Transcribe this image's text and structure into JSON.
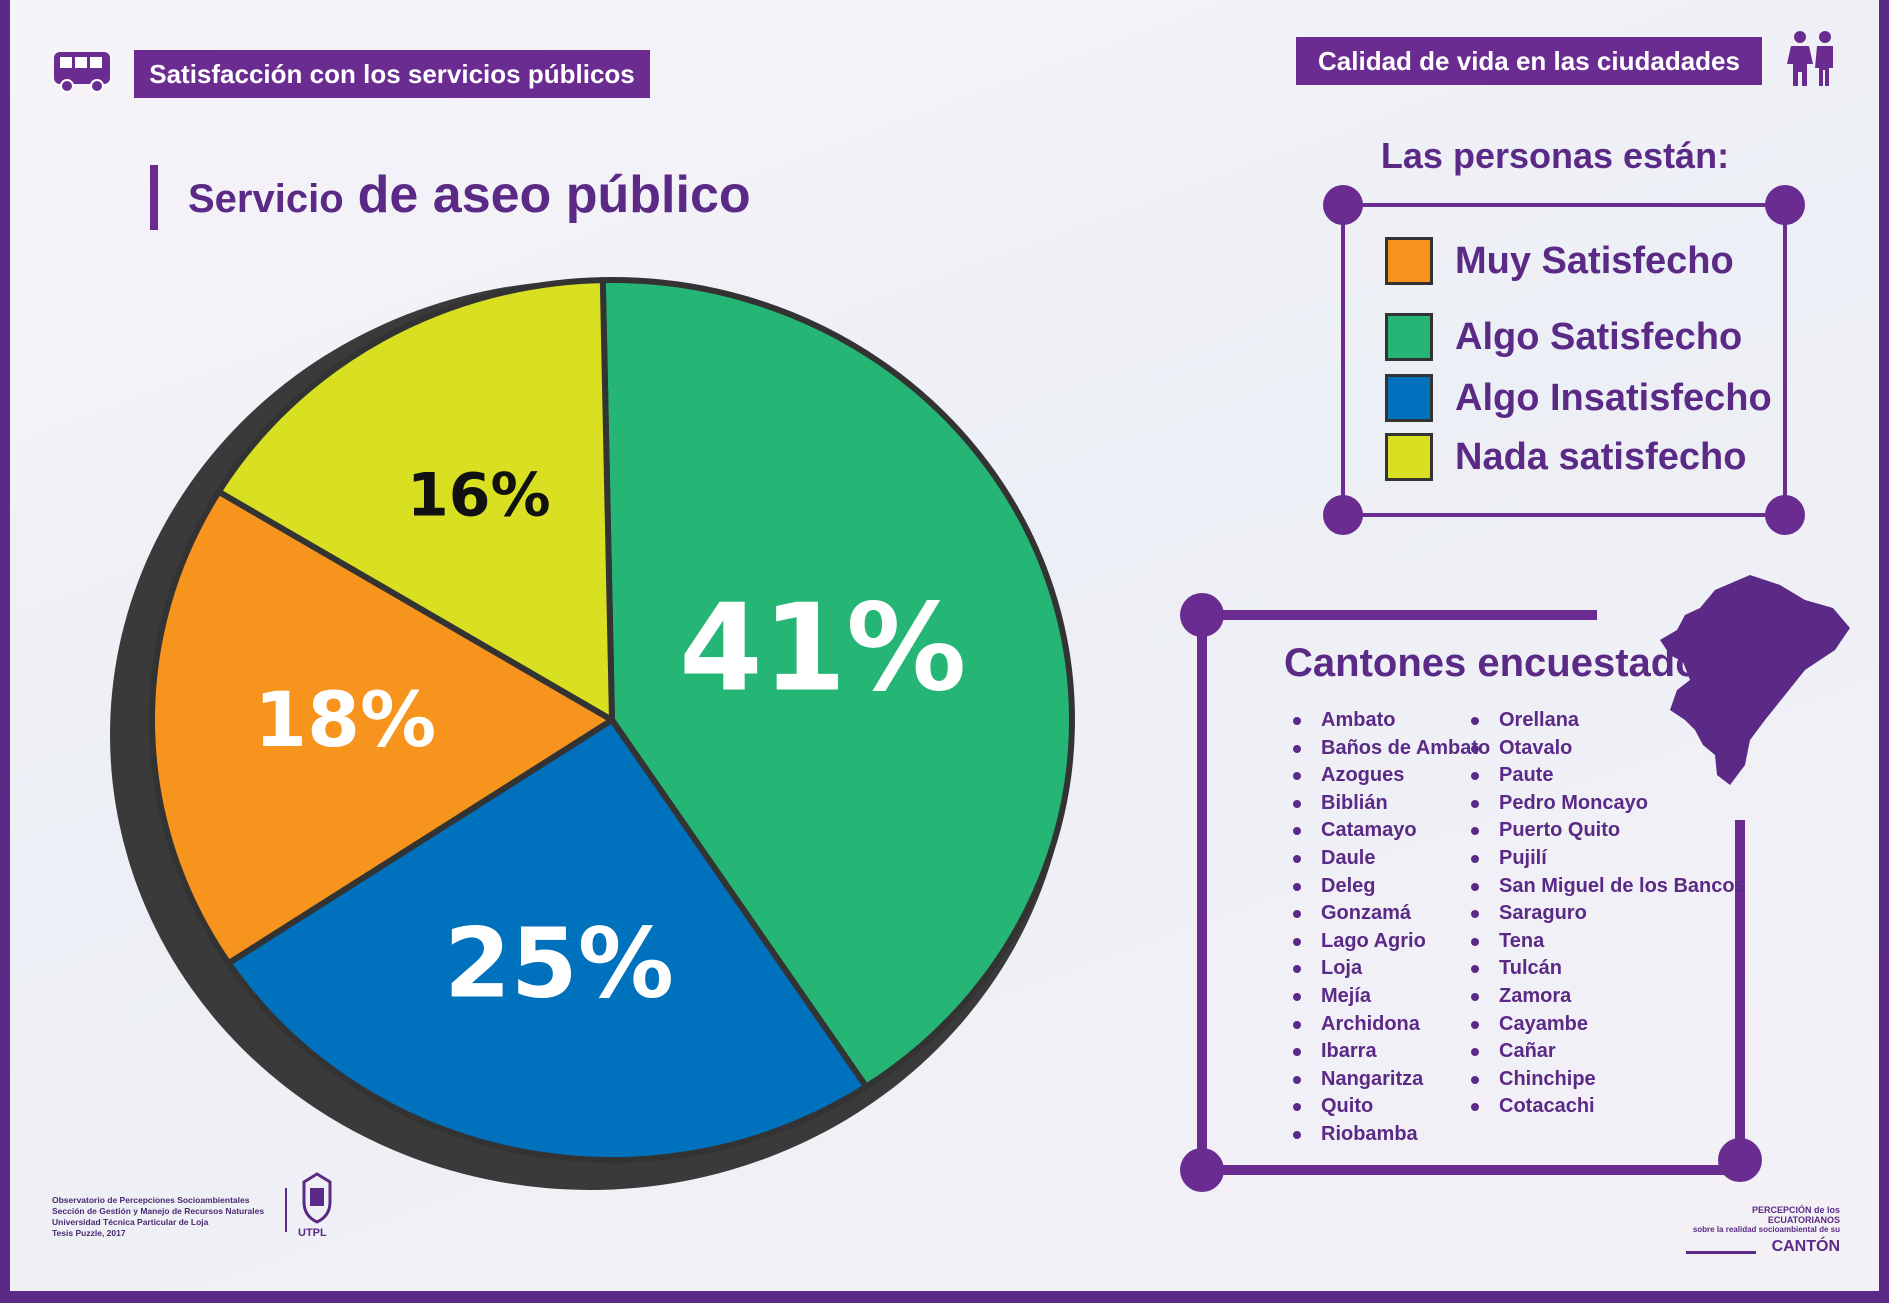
{
  "header": {
    "left_title": "Satisfacción con los servicios públicos",
    "right_title": "Calidad de vida en las ciudadades"
  },
  "chart_title": {
    "part1": "Servicio",
    "part2": "de aseo público"
  },
  "legend": {
    "heading": "Las personas están:",
    "items": [
      {
        "label": "Muy Satisfecho",
        "color": "#f7941d"
      },
      {
        "label": "Algo Satisfecho",
        "color": "#25b574"
      },
      {
        "label": "Algo Insatisfecho",
        "color": "#0071bc"
      },
      {
        "label": "Nada satisfecho",
        "color": "#d9e021"
      }
    ]
  },
  "chart_data": {
    "type": "pie",
    "title": "Servicio de aseo público",
    "slices": [
      {
        "label": "Algo Satisfecho",
        "value": 41,
        "display": "41%",
        "color": "#25b574"
      },
      {
        "label": "Algo Insatisfecho",
        "value": 25,
        "display": "25%",
        "color": "#0071bc"
      },
      {
        "label": "Muy Satisfecho",
        "value": 18,
        "display": "18%",
        "color": "#f7941d"
      },
      {
        "label": "Nada satisfecho",
        "value": 16,
        "display": "16%",
        "color": "#d9e021"
      }
    ]
  },
  "cantones": {
    "heading": "Cantones encuestados",
    "column1": [
      "Ambato",
      "Baños de Ambato",
      "Azogues",
      "Biblián",
      "Catamayo",
      "Daule",
      "Deleg",
      "Gonzamá",
      "Lago Agrio",
      "Loja",
      "Mejía",
      "Archidona",
      "Ibarra",
      "Nangaritza",
      "Quito",
      "Riobamba"
    ],
    "column2": [
      "Orellana",
      "Otavalo",
      "Paute",
      "Pedro Moncayo",
      "Puerto Quito",
      "Pujilí",
      "San Miguel de los Bancos",
      "Saraguro",
      "Tena",
      "Tulcán",
      "Zamora",
      "Cayambe",
      "Cañar",
      "Chinchipe",
      "Cotacachi"
    ]
  },
  "footer": {
    "credits": [
      "Observatorio de Percepciones Socioambientales",
      "Sección de Gestión y Manejo de Recursos Naturales",
      "Universidad Técnica Particular de Loja",
      "Tesis Puzzle, 2017"
    ],
    "utpl": "UTPL",
    "brand_line1": "PERCEPCIÓN de los ECUATORIANOS",
    "brand_line2": "sobre la realidad socioambiental de su",
    "brand_line3": "CANTÓN"
  },
  "colors": {
    "brand_purple": "#6a2c91",
    "text_purple": "#5b2a86"
  }
}
